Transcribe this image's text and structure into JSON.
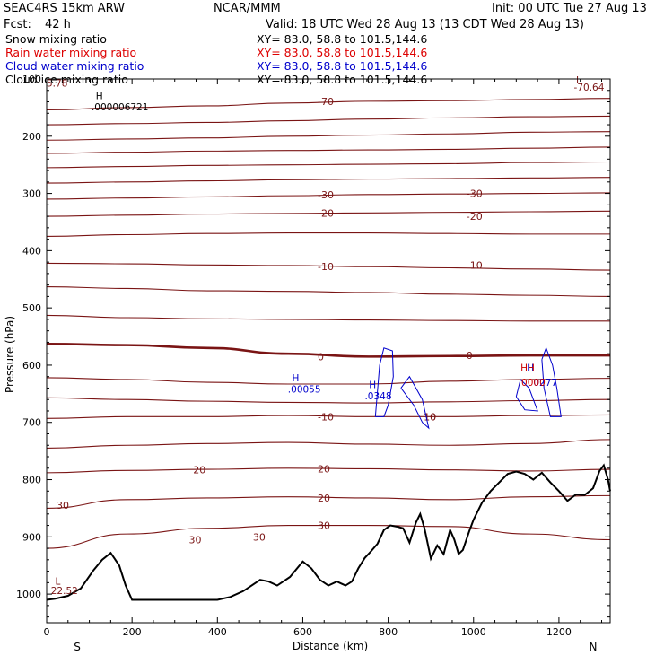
{
  "header": {
    "model": "SEAC4RS 15km ARW",
    "org": "NCAR/MMM",
    "init": "Init: 00 UTC Tue 27 Aug 13",
    "fcst_label": "Fcst:",
    "fcst_value": "42 h",
    "valid": "Valid: 18 UTC Wed 28 Aug 13 (13 CDT Wed 28 Aug 13)"
  },
  "fields": [
    {
      "name": "Snow mixing ratio",
      "xy": "XY=  83.0, 58.8 to 101.5,144.6",
      "color": "#000000"
    },
    {
      "name": "Rain water mixing ratio",
      "xy": "XY=  83.0, 58.8 to 101.5,144.6",
      "color": "#dd0000"
    },
    {
      "name": "Cloud water mixing ratio",
      "xy": "XY=  83.0, 58.8 to 101.5,144.6",
      "color": "#0000cc"
    },
    {
      "name": "Cloud ice mixing ratio",
      "xy": "XY=  83.0, 58.8 to 101.5,144.6",
      "color": "#000000"
    }
  ],
  "chart_data": {
    "type": "line",
    "xlabel": "Distance (km)",
    "ylabel": "Pressure (hPa)",
    "xlim": [
      0,
      1320
    ],
    "ylim": [
      1050,
      100
    ],
    "x_ticks": [
      0,
      200,
      400,
      600,
      800,
      1000,
      1200
    ],
    "y_ticks": [
      200,
      300,
      400,
      500,
      600,
      700,
      800,
      900,
      1000
    ],
    "y_tick_labels": [
      "200",
      "300",
      "400",
      "500",
      "600",
      "700",
      "800",
      "900",
      "1000"
    ],
    "top_tick_label": "100",
    "x_tick_labels": [
      "0",
      "200",
      "400",
      "600",
      "800",
      "1000",
      "1200"
    ],
    "endpoint_left": "S",
    "endpoint_right": "N",
    "colors": {
      "temperature": "#7a1414",
      "terrain": "#000000",
      "cloud_water": "#0000cc",
      "rain": "#cc0000"
    },
    "terrain": {
      "x": [
        0,
        20,
        50,
        80,
        110,
        130,
        150,
        170,
        185,
        200,
        240,
        300,
        360,
        400,
        430,
        460,
        480,
        500,
        520,
        540,
        570,
        600,
        620,
        640,
        660,
        680,
        700,
        715,
        730,
        745,
        760,
        775,
        790,
        805,
        820,
        835,
        850,
        865,
        875,
        885,
        900,
        915,
        930,
        945,
        955,
        965,
        975,
        990,
        1000,
        1020,
        1040,
        1060,
        1080,
        1100,
        1120,
        1140,
        1160,
        1180,
        1200,
        1220,
        1240,
        1260,
        1280,
        1295,
        1305,
        1315,
        1320
      ],
      "y": [
        1010,
        1008,
        1003,
        990,
        958,
        940,
        928,
        950,
        985,
        1010,
        1010,
        1010,
        1010,
        1010,
        1005,
        995,
        985,
        975,
        978,
        985,
        970,
        943,
        955,
        975,
        985,
        978,
        985,
        978,
        955,
        937,
        925,
        912,
        888,
        880,
        882,
        885,
        910,
        875,
        860,
        885,
        938,
        915,
        930,
        888,
        905,
        930,
        923,
        890,
        870,
        840,
        820,
        805,
        790,
        786,
        790,
        800,
        788,
        805,
        820,
        837,
        826,
        827,
        815,
        785,
        775,
        800,
        820
      ]
    },
    "temperature_contours": [
      {
        "p": [
          154,
          150,
          147,
          142,
          139,
          138,
          136,
          134
        ],
        "label": "-70",
        "bold": false
      },
      {
        "p": [
          180,
          178,
          176,
          173,
          170,
          168,
          166,
          165
        ],
        "label": "",
        "bold": false
      },
      {
        "p": [
          207,
          205,
          203,
          200,
          198,
          196,
          193,
          192
        ],
        "label": "",
        "bold": false
      },
      {
        "p": [
          230,
          228,
          226,
          225,
          224,
          223,
          221,
          219
        ],
        "label": "",
        "bold": false
      },
      {
        "p": [
          255,
          253,
          251,
          250,
          249,
          248,
          246,
          245
        ],
        "label": "",
        "bold": false
      },
      {
        "p": [
          282,
          280,
          278,
          276,
          275,
          274,
          273,
          272
        ],
        "label": "",
        "bold": false
      },
      {
        "p": [
          310,
          308,
          306,
          304,
          302,
          301,
          300,
          299
        ],
        "label": "-30",
        "bold": false
      },
      {
        "p": [
          340,
          338,
          336,
          335,
          334,
          333,
          332,
          331
        ],
        "label": "-20",
        "bold": false
      },
      {
        "p": [
          375,
          372,
          370,
          369,
          369,
          370,
          371,
          371
        ],
        "label": "",
        "bold": false
      },
      {
        "p": [
          422,
          423,
          425,
          426,
          428,
          430,
          432,
          434
        ],
        "label": "-10",
        "bold": false
      },
      {
        "p": [
          463,
          466,
          470,
          471,
          473,
          476,
          478,
          480
        ],
        "label": "",
        "bold": false
      },
      {
        "p": [
          513,
          517,
          519,
          520,
          521,
          522,
          523,
          523
        ],
        "label": "",
        "bold": false
      },
      {
        "p": [
          563,
          565,
          570,
          580,
          585,
          584,
          583,
          583
        ],
        "label": "0",
        "bold": true
      },
      {
        "p": [
          622,
          625,
          630,
          633,
          633,
          628,
          625,
          623
        ],
        "label": "",
        "bold": false
      },
      {
        "p": [
          657,
          660,
          663,
          665,
          666,
          664,
          662,
          660
        ],
        "label": "",
        "bold": false
      },
      {
        "p": [
          693,
          690,
          690,
          688,
          690,
          690,
          688,
          687
        ],
        "label": "-10",
        "bold": false
      },
      {
        "p": [
          745,
          740,
          737,
          735,
          738,
          740,
          737,
          730
        ],
        "label": "",
        "bold": false
      },
      {
        "p": [
          788,
          784,
          782,
          780,
          781,
          783,
          785,
          782
        ],
        "label": "20",
        "bold": false
      },
      {
        "p": [
          850,
          835,
          832,
          830,
          832,
          835,
          830,
          828
        ],
        "label": "20",
        "bold": false
      },
      {
        "p": [
          920,
          895,
          885,
          880,
          880,
          882,
          895,
          905
        ],
        "label": "30",
        "bold": false
      }
    ],
    "temperature_labels_extra": [
      "-30",
      "-20",
      "-10",
      "0",
      "10",
      "10",
      "20",
      "30",
      "30",
      "30"
    ],
    "cloud_water_labels": [
      {
        "text": "H",
        "x": 575,
        "p": 628
      },
      {
        "text": ".00055",
        "x": 565,
        "p": 648
      },
      {
        "text": "H",
        "x": 755,
        "p": 640
      },
      {
        "text": ".0348",
        "x": 745,
        "p": 660
      }
    ],
    "rain_labels": [
      {
        "text": "HH",
        "x": 1110,
        "p": 610
      },
      {
        "text": ".0000",
        "x": 1105,
        "p": 636
      }
    ],
    "cloud_water_labels_extra": [
      {
        "text": "H",
        "x": 1125,
        "p": 610
      },
      {
        "text": "0277",
        "x": 1140,
        "p": 636
      }
    ],
    "snow_labels": [
      {
        "text": "H",
        "x": 115,
        "p": 135
      },
      {
        "text": ".000006721",
        "x": 105,
        "p": 155
      }
    ],
    "corner_labels": [
      {
        "text": "L",
        "x": 1240,
        "p": 108
      },
      {
        "text": "-70.64",
        "x": 1235,
        "p": 120
      },
      {
        "text": "5.78",
        "x": 0,
        "p": 113
      },
      {
        "text": "L",
        "x": 20,
        "p": 983
      },
      {
        "text": "22.52",
        "x": 10,
        "p": 1000
      }
    ]
  }
}
